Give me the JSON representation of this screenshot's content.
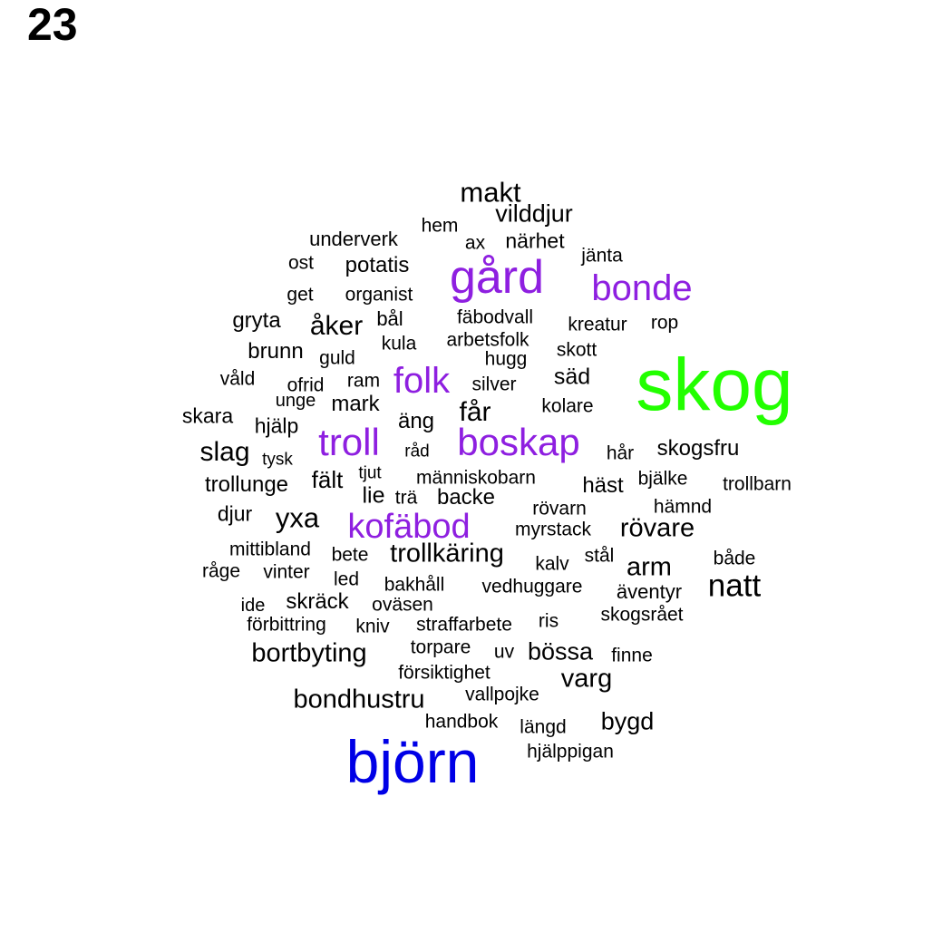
{
  "page_number": "23",
  "colors": {
    "black": "#000000",
    "purple": "#8e1fe0",
    "green": "#22ff00",
    "blue": "#0000e6"
  },
  "words": [
    {
      "text": "skog",
      "color": "green"
    },
    {
      "text": "björn",
      "color": "blue"
    },
    {
      "text": "gård",
      "color": "purple"
    },
    {
      "text": "bonde",
      "color": "purple"
    },
    {
      "text": "folk",
      "color": "purple"
    },
    {
      "text": "troll",
      "color": "purple"
    },
    {
      "text": "boskap",
      "color": "purple"
    },
    {
      "text": "kofäbod",
      "color": "purple"
    },
    {
      "text": "makt",
      "color": "black"
    },
    {
      "text": "vilddjur",
      "color": "black"
    },
    {
      "text": "hem",
      "color": "black"
    },
    {
      "text": "underverk",
      "color": "black"
    },
    {
      "text": "ax",
      "color": "black"
    },
    {
      "text": "närhet",
      "color": "black"
    },
    {
      "text": "jänta",
      "color": "black"
    },
    {
      "text": "ost",
      "color": "black"
    },
    {
      "text": "potatis",
      "color": "black"
    },
    {
      "text": "get",
      "color": "black"
    },
    {
      "text": "organist",
      "color": "black"
    },
    {
      "text": "gryta",
      "color": "black"
    },
    {
      "text": "åker",
      "color": "black"
    },
    {
      "text": "bål",
      "color": "black"
    },
    {
      "text": "fäbodvall",
      "color": "black"
    },
    {
      "text": "kreatur",
      "color": "black"
    },
    {
      "text": "rop",
      "color": "black"
    },
    {
      "text": "kula",
      "color": "black"
    },
    {
      "text": "arbetsfolk",
      "color": "black"
    },
    {
      "text": "brunn",
      "color": "black"
    },
    {
      "text": "guld",
      "color": "black"
    },
    {
      "text": "skott",
      "color": "black"
    },
    {
      "text": "hugg",
      "color": "black"
    },
    {
      "text": "våld",
      "color": "black"
    },
    {
      "text": "ofrid",
      "color": "black"
    },
    {
      "text": "ram",
      "color": "black"
    },
    {
      "text": "silver",
      "color": "black"
    },
    {
      "text": "säd",
      "color": "black"
    },
    {
      "text": "unge",
      "color": "black"
    },
    {
      "text": "mark",
      "color": "black"
    },
    {
      "text": "kolare",
      "color": "black"
    },
    {
      "text": "skara",
      "color": "black"
    },
    {
      "text": "hjälp",
      "color": "black"
    },
    {
      "text": "äng",
      "color": "black"
    },
    {
      "text": "får",
      "color": "black"
    },
    {
      "text": "slag",
      "color": "black"
    },
    {
      "text": "tysk",
      "color": "black"
    },
    {
      "text": "råd",
      "color": "black"
    },
    {
      "text": "hår",
      "color": "black"
    },
    {
      "text": "skogsfru",
      "color": "black"
    },
    {
      "text": "tjut",
      "color": "black"
    },
    {
      "text": "trollunge",
      "color": "black"
    },
    {
      "text": "fält",
      "color": "black"
    },
    {
      "text": "människobarn",
      "color": "black"
    },
    {
      "text": "häst",
      "color": "black"
    },
    {
      "text": "bjälke",
      "color": "black"
    },
    {
      "text": "trollbarn",
      "color": "black"
    },
    {
      "text": "lie",
      "color": "black"
    },
    {
      "text": "trä",
      "color": "black"
    },
    {
      "text": "backe",
      "color": "black"
    },
    {
      "text": "djur",
      "color": "black"
    },
    {
      "text": "yxa",
      "color": "black"
    },
    {
      "text": "rövarn",
      "color": "black"
    },
    {
      "text": "hämnd",
      "color": "black"
    },
    {
      "text": "myrstack",
      "color": "black"
    },
    {
      "text": "rövare",
      "color": "black"
    },
    {
      "text": "mittibland",
      "color": "black"
    },
    {
      "text": "bete",
      "color": "black"
    },
    {
      "text": "trollkäring",
      "color": "black"
    },
    {
      "text": "stål",
      "color": "black"
    },
    {
      "text": "både",
      "color": "black"
    },
    {
      "text": "råge",
      "color": "black"
    },
    {
      "text": "vinter",
      "color": "black"
    },
    {
      "text": "kalv",
      "color": "black"
    },
    {
      "text": "arm",
      "color": "black"
    },
    {
      "text": "led",
      "color": "black"
    },
    {
      "text": "bakhåll",
      "color": "black"
    },
    {
      "text": "vedhuggare",
      "color": "black"
    },
    {
      "text": "natt",
      "color": "black"
    },
    {
      "text": "äventyr",
      "color": "black"
    },
    {
      "text": "ide",
      "color": "black"
    },
    {
      "text": "skräck",
      "color": "black"
    },
    {
      "text": "oväsen",
      "color": "black"
    },
    {
      "text": "förbittring",
      "color": "black"
    },
    {
      "text": "kniv",
      "color": "black"
    },
    {
      "text": "straffarbete",
      "color": "black"
    },
    {
      "text": "ris",
      "color": "black"
    },
    {
      "text": "skogsrået",
      "color": "black"
    },
    {
      "text": "bortbyting",
      "color": "black"
    },
    {
      "text": "torpare",
      "color": "black"
    },
    {
      "text": "uv",
      "color": "black"
    },
    {
      "text": "bössa",
      "color": "black"
    },
    {
      "text": "finne",
      "color": "black"
    },
    {
      "text": "försiktighet",
      "color": "black"
    },
    {
      "text": "varg",
      "color": "black"
    },
    {
      "text": "bondhustru",
      "color": "black"
    },
    {
      "text": "vallpojke",
      "color": "black"
    },
    {
      "text": "handbok",
      "color": "black"
    },
    {
      "text": "längd",
      "color": "black"
    },
    {
      "text": "bygd",
      "color": "black"
    },
    {
      "text": "hjälppigan",
      "color": "black"
    }
  ]
}
